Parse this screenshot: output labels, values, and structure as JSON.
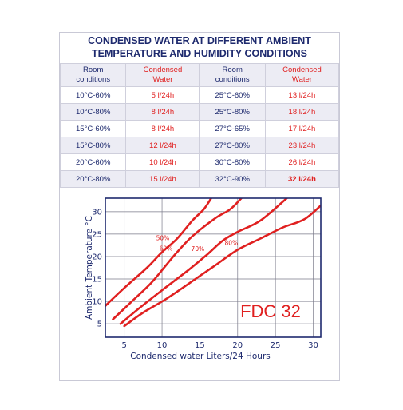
{
  "title_line1": "CONDENSED WATER AT DIFFERENT AMBIENT",
  "title_line2": "TEMPERATURE AND HUMIDITY  CONDITIONS",
  "table": {
    "headers": [
      [
        "Room",
        "conditions"
      ],
      [
        "Condensed",
        "Water"
      ],
      [
        "Room",
        "conditions"
      ],
      [
        "Condensed",
        "Water"
      ]
    ],
    "rows": [
      [
        "10°C-60%",
        "5 l/24h",
        "25°C-60%",
        "13 l/24h"
      ],
      [
        "10°C-80%",
        "8 l/24h",
        "25°C-80%",
        "18 l/24h"
      ],
      [
        "15°C-60%",
        "8 l/24h",
        "27°C-65%",
        "17 l/24h"
      ],
      [
        "15°C-80%",
        "12 l/24h",
        "27°C-80%",
        "23 l/24h"
      ],
      [
        "20°C-60%",
        "10 l/24h",
        "30°C-80%",
        "26 l/24h"
      ],
      [
        "20°C-80%",
        "15 l/24h",
        "32°C-90%",
        "32 l/24h"
      ]
    ]
  },
  "chart_data": {
    "type": "line",
    "xlabel": "Condensed water Liters/24 Hours",
    "ylabel": "Ambient Temperature °C",
    "xlim": [
      2.5,
      31
    ],
    "ylim": [
      2,
      33
    ],
    "xticks": [
      5,
      10,
      15,
      20,
      25,
      30
    ],
    "yticks": [
      5,
      10,
      15,
      20,
      25,
      30
    ],
    "grid": true,
    "annotation": "FDC 32",
    "colors": {
      "curve": "#e02020",
      "axis": "#1e2a6e",
      "annotation": "#e02020"
    },
    "series": [
      {
        "name": "50%",
        "points": [
          [
            2.5,
            9
          ],
          [
            5,
            13
          ],
          [
            8,
            17.5
          ],
          [
            10,
            21
          ],
          [
            12,
            24
          ],
          [
            14,
            28
          ],
          [
            15.5,
            30.5
          ],
          [
            16.5,
            33
          ]
        ]
      },
      {
        "name": "60%",
        "points": [
          [
            3.5,
            6
          ],
          [
            6,
            10
          ],
          [
            8.5,
            14
          ],
          [
            10.5,
            18
          ],
          [
            12,
            21
          ],
          [
            14,
            24.5
          ],
          [
            17,
            28.5
          ],
          [
            19,
            30.5
          ],
          [
            20.5,
            33
          ]
        ]
      },
      {
        "name": "70%",
        "points": [
          [
            4.5,
            5
          ],
          [
            7,
            8.5
          ],
          [
            10,
            12.5
          ],
          [
            13.5,
            17
          ],
          [
            16,
            20.5
          ],
          [
            18,
            23.5
          ],
          [
            20,
            25.5
          ],
          [
            23,
            28
          ],
          [
            26.5,
            33
          ]
        ]
      },
      {
        "name": "80%",
        "points": [
          [
            5,
            4.5
          ],
          [
            7.5,
            7.5
          ],
          [
            10.5,
            10.5
          ],
          [
            14,
            14.5
          ],
          [
            17,
            18
          ],
          [
            20,
            21.5
          ],
          [
            23,
            24
          ],
          [
            26,
            26.5
          ],
          [
            29,
            28.5
          ],
          [
            32,
            33
          ]
        ]
      }
    ]
  }
}
